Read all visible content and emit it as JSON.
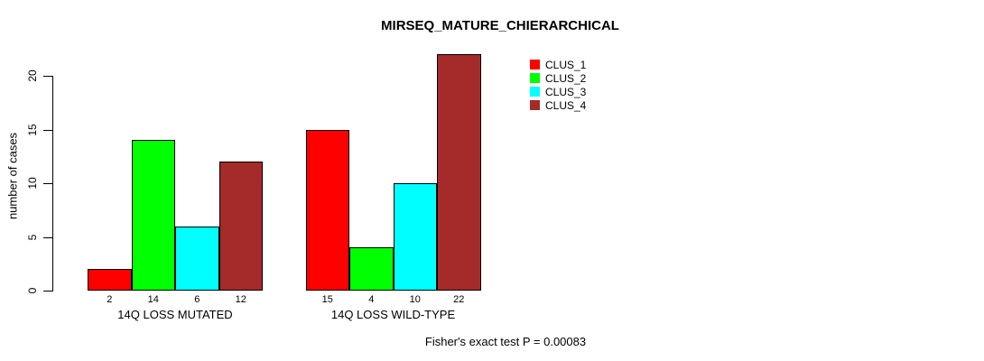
{
  "chart_data": {
    "type": "bar",
    "title": "MIRSEQ_MATURE_CHIERARCHICAL",
    "categories": [
      "14Q LOSS MUTATED",
      "14Q LOSS WILD-TYPE"
    ],
    "series": [
      {
        "name": "CLUS_1",
        "color": "#FF0000",
        "values": [
          2,
          15
        ]
      },
      {
        "name": "CLUS_2",
        "color": "#00FF00",
        "values": [
          14,
          4
        ]
      },
      {
        "name": "CLUS_3",
        "color": "#00FFFF",
        "values": [
          6,
          10
        ]
      },
      {
        "name": "CLUS_4",
        "color": "#A52A2A",
        "values": [
          12,
          22
        ]
      }
    ],
    "show_value_labels": true,
    "ylabel": "number of cases",
    "yticks": [
      0,
      5,
      10,
      15,
      20
    ],
    "ylim": [
      0,
      22
    ],
    "grid": false,
    "legend_position": "top-right",
    "annotation": "Fisher's exact test P = 0.00083"
  }
}
